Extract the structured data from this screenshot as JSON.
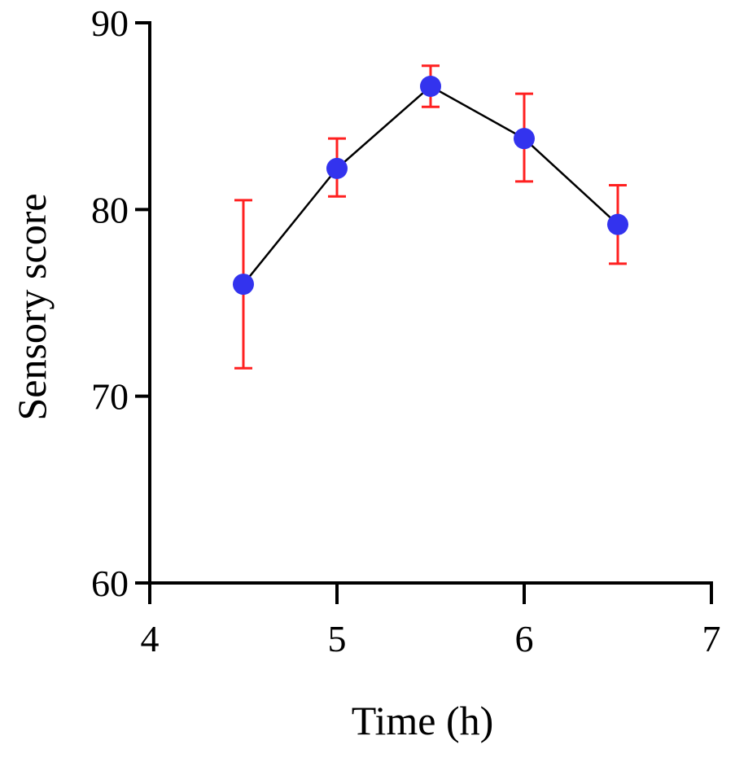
{
  "chart_data": {
    "type": "line",
    "title": "",
    "xlabel": "Time (h)",
    "ylabel": "Sensory score",
    "xlim": [
      4,
      7
    ],
    "ylim": [
      60,
      90
    ],
    "xticks": [
      4,
      5,
      6,
      7
    ],
    "yticks": [
      60,
      70,
      80,
      90
    ],
    "grid": false,
    "colors": {
      "marker": "#3333ee",
      "error_bar": "#ff2020",
      "line": "#000000"
    },
    "series": [
      {
        "name": "Sensory score",
        "x": [
          4.5,
          5.0,
          5.5,
          6.0,
          6.5
        ],
        "y": [
          76.0,
          82.2,
          86.6,
          83.8,
          79.2
        ],
        "error_low": [
          71.5,
          80.7,
          85.5,
          81.5,
          77.1
        ],
        "error_high": [
          80.5,
          83.8,
          87.7,
          86.2,
          81.3
        ]
      }
    ]
  }
}
